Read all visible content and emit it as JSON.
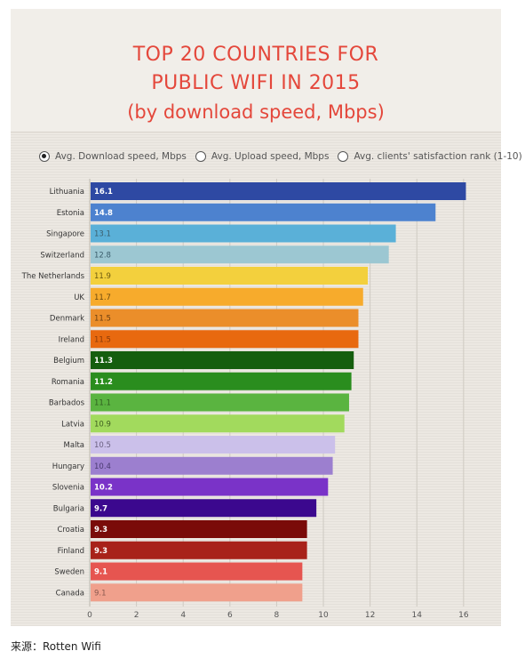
{
  "title_lines": [
    "TOP 20 COUNTRIES FOR",
    "PUBLIC WIFI IN 2015",
    "(by download speed, Mbps)"
  ],
  "options": [
    {
      "label": "Avg. Download speed, Mbps",
      "selected": true
    },
    {
      "label": "Avg. Upload speed, Mbps",
      "selected": false
    },
    {
      "label": "Avg. clients' satisfaction rank (1-10)",
      "selected": false
    }
  ],
  "source": "来源：Rotten Wifi",
  "chart_data": {
    "type": "bar",
    "orientation": "horizontal",
    "title": "TOP 20 COUNTRIES FOR PUBLIC WIFI IN 2015 (by download speed, Mbps)",
    "categories": [
      "Lithuania",
      "Estonia",
      "Singapore",
      "Switzerland",
      "The Netherlands",
      "UK",
      "Denmark",
      "Ireland",
      "Belgium",
      "Romania",
      "Barbados",
      "Latvia",
      "Malta",
      "Hungary",
      "Slovenia",
      "Bulgaria",
      "Croatia",
      "Finland",
      "Sweden",
      "Canada"
    ],
    "values": [
      16.1,
      14.8,
      13.1,
      12.8,
      11.9,
      11.7,
      11.5,
      11.5,
      11.3,
      11.2,
      11.1,
      10.9,
      10.5,
      10.4,
      10.2,
      9.7,
      9.3,
      9.3,
      9.1,
      9.1
    ],
    "bar_colors": [
      "#2e49a3",
      "#4d82cf",
      "#5ab0d8",
      "#9cc7d2",
      "#f3d03d",
      "#f7ab2c",
      "#eb8e2a",
      "#e8690f",
      "#155e0e",
      "#2a8d1e",
      "#5ab440",
      "#a2da5d",
      "#cbc0ea",
      "#9c7fcf",
      "#7a33c8",
      "#3b088e",
      "#7a0b09",
      "#a8221a",
      "#e65550",
      "#f0a08c"
    ],
    "value_label_colors": [
      "#ffffff",
      "#ffffff",
      "#3b5d6b",
      "#3b5d6b",
      "#6b5a10",
      "#6b4a10",
      "#6b3e10",
      "#8a3a08",
      "#ffffff",
      "#ffffff",
      "#2f5e20",
      "#3f5e20",
      "#6b6080",
      "#4a3a70",
      "#ffffff",
      "#ffffff",
      "#ffffff",
      "#ffffff",
      "#ffffff",
      "#8a5a50"
    ],
    "x_ticks": [
      0,
      2,
      4,
      6,
      8,
      10,
      12,
      14,
      16
    ],
    "xlim": [
      0,
      16.5
    ],
    "grid": true
  }
}
